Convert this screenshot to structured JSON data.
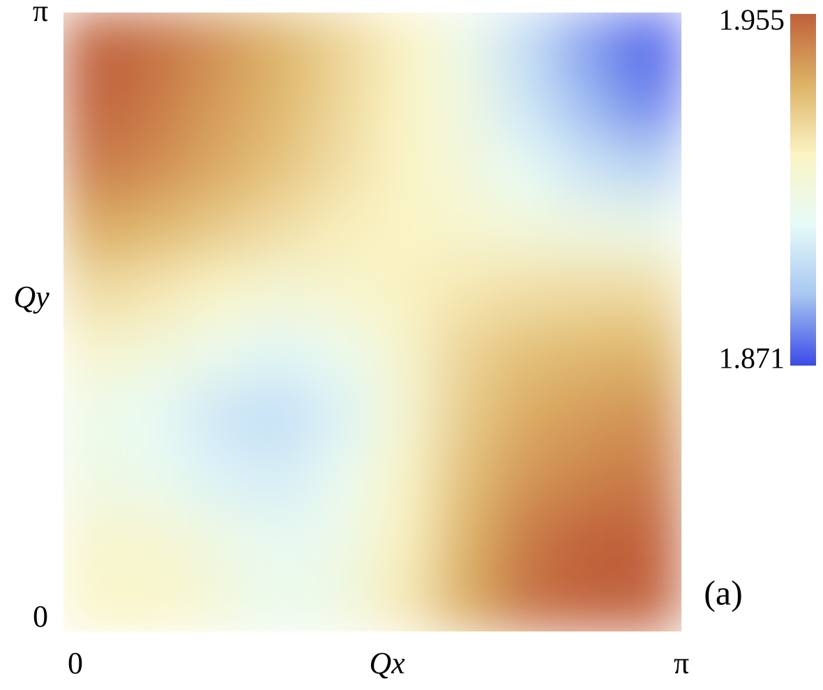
{
  "chart_data": {
    "type": "heatmap",
    "xlabel": "Qx",
    "ylabel": "Qy",
    "panel_label": "(a)",
    "xlim": [
      0,
      3.14159
    ],
    "ylim": [
      0,
      3.14159
    ],
    "xticks": [
      0,
      {
        "value": 3.14159,
        "label": "π"
      }
    ],
    "yticks": [
      0,
      {
        "value": 3.14159,
        "label": "π"
      }
    ],
    "x": [
      0.157,
      0.471,
      0.785,
      1.1,
      1.414,
      1.728,
      2.042,
      2.356,
      2.67,
      2.985
    ],
    "y": [
      0.157,
      0.471,
      0.785,
      1.1,
      1.414,
      1.728,
      2.042,
      2.356,
      2.67,
      2.985
    ],
    "z": [
      [
        1.92,
        1.92,
        1.915,
        1.908,
        1.912,
        1.924,
        1.94,
        1.952,
        1.955,
        1.955
      ],
      [
        1.918,
        1.917,
        1.912,
        1.906,
        1.91,
        1.922,
        1.938,
        1.95,
        1.955,
        1.955
      ],
      [
        1.912,
        1.908,
        1.902,
        1.9,
        1.907,
        1.92,
        1.935,
        1.944,
        1.948,
        1.95
      ],
      [
        1.91,
        1.905,
        1.898,
        1.895,
        1.902,
        1.917,
        1.932,
        1.94,
        1.943,
        1.945
      ],
      [
        1.918,
        1.914,
        1.908,
        1.903,
        1.908,
        1.918,
        1.93,
        1.935,
        1.937,
        1.938
      ],
      [
        1.928,
        1.925,
        1.92,
        1.916,
        1.918,
        1.922,
        1.925,
        1.927,
        1.928,
        1.928
      ],
      [
        1.94,
        1.937,
        1.932,
        1.927,
        1.923,
        1.921,
        1.918,
        1.915,
        1.912,
        1.91
      ],
      [
        1.95,
        1.946,
        1.94,
        1.934,
        1.927,
        1.921,
        1.914,
        1.905,
        1.897,
        1.892
      ],
      [
        1.955,
        1.95,
        1.943,
        1.937,
        1.929,
        1.921,
        1.912,
        1.898,
        1.886,
        1.878
      ],
      [
        1.955,
        1.952,
        1.945,
        1.938,
        1.93,
        1.922,
        1.91,
        1.895,
        1.882,
        1.873
      ]
    ],
    "zlim": [
      1.871,
      1.955
    ],
    "zticks": [
      1.871,
      1.955
    ],
    "colormap": [
      "#3a4ae8",
      "#a7c6f2",
      "#e6fbf8",
      "#fbf4c4",
      "#ddb366",
      "#c0603a"
    ]
  }
}
